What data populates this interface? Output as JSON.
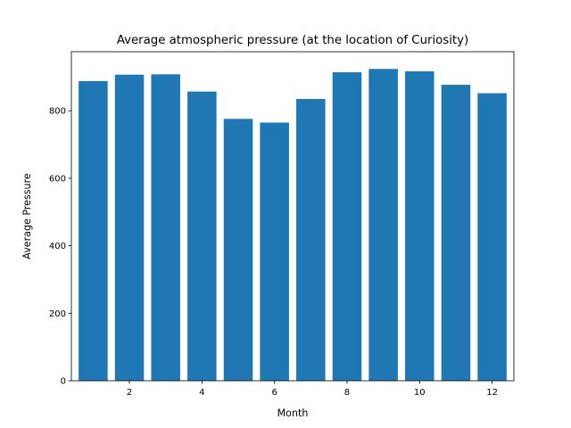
{
  "chart_data": {
    "type": "bar",
    "title": "Average atmospheric pressure (at the location of Curiosity)",
    "xlabel": "Month",
    "ylabel": "Average Pressure",
    "x": [
      1,
      2,
      3,
      4,
      5,
      6,
      7,
      8,
      9,
      10,
      11,
      12
    ],
    "values": [
      888,
      907,
      908,
      857,
      776,
      765,
      835,
      914,
      924,
      917,
      877,
      852
    ],
    "xticks": [
      2,
      4,
      6,
      8,
      10,
      12
    ],
    "yticks": [
      0,
      200,
      400,
      600,
      800
    ],
    "xlim": [
      0.4,
      12.6
    ],
    "ylim": [
      0,
      975
    ],
    "bar_color": "#1f77b4",
    "grid": false,
    "legend": "none"
  }
}
